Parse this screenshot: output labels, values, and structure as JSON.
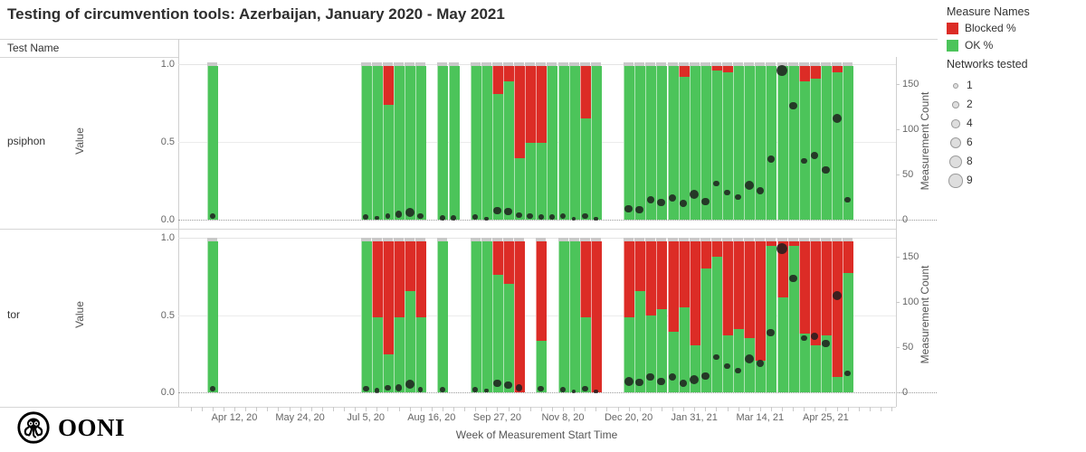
{
  "title": "Testing of circumvention tools: Azerbaijan, January 2020 - May 2021",
  "row_header": "Test Name",
  "x_axis": {
    "title": "Week of Measurement Start Time",
    "ticks": [
      "Apr 12, 20",
      "May 24, 20",
      "Jul 5, 20",
      "Aug 16, 20",
      "Sep 27, 20",
      "Nov 8, 20",
      "Dec 20, 20",
      "Jan 31, 21",
      "Mar 14, 21",
      "Apr 25, 21"
    ]
  },
  "y_left": {
    "label": "Value",
    "ticks": [
      "1.0",
      "0.5",
      "0.0"
    ]
  },
  "y_right": {
    "label": "Measurement Count",
    "ticks": [
      "150",
      "100",
      "50",
      "0"
    ]
  },
  "legend": {
    "measure_title": "Measure Names",
    "measures": [
      {
        "label": "Blocked %",
        "color": "#dc2c26"
      },
      {
        "label": "OK %",
        "color": "#4cc45a"
      }
    ],
    "networks_title": "Networks tested",
    "networks": [
      1,
      2,
      4,
      6,
      8,
      9
    ]
  },
  "logo_text": "OONI",
  "chart_data": [
    {
      "type": "bar",
      "name": "psiphon",
      "stack_measures": [
        "OK %",
        "Blocked %"
      ],
      "x_unit": "weeks relative to Apr 12 2020 tick",
      "columns": [
        "week",
        "ok_pct",
        "blocked_pct",
        "measurement_count",
        "networks_tested"
      ],
      "weeks": [
        [
          -2,
          1,
          0,
          4,
          2
        ],
        [
          12,
          1,
          0,
          3,
          2
        ],
        [
          13,
          1,
          0,
          2,
          1
        ],
        [
          14,
          0.75,
          0.25,
          4,
          2
        ],
        [
          15,
          1,
          0,
          6,
          4
        ],
        [
          16,
          1,
          0,
          8,
          6
        ],
        [
          17,
          1,
          0,
          4,
          3
        ],
        [
          19,
          1,
          0,
          2,
          2
        ],
        [
          20,
          1,
          0,
          2,
          2
        ],
        [
          22,
          1,
          0,
          3,
          2
        ],
        [
          23,
          1,
          0,
          1,
          1
        ],
        [
          24,
          0.82,
          0.18,
          10,
          5
        ],
        [
          25,
          0.9,
          0.1,
          9,
          5
        ],
        [
          26,
          0.4,
          0.6,
          5,
          3
        ],
        [
          27,
          0.5,
          0.5,
          4,
          3
        ],
        [
          28,
          0.5,
          0.5,
          3,
          2
        ],
        [
          29,
          1,
          0,
          3,
          2
        ],
        [
          30,
          1,
          0,
          4,
          3
        ],
        [
          31,
          1,
          0,
          1,
          1
        ],
        [
          32,
          0.66,
          0.34,
          4,
          3
        ],
        [
          33,
          1,
          0,
          1,
          1
        ],
        [
          36,
          1,
          0,
          12,
          5
        ],
        [
          37,
          1,
          0,
          11,
          5
        ],
        [
          38,
          1,
          0,
          22,
          4
        ],
        [
          39,
          1,
          0,
          19,
          5
        ],
        [
          40,
          1,
          0,
          24,
          5
        ],
        [
          41,
          0.93,
          0.07,
          18,
          4
        ],
        [
          42,
          1,
          0,
          28,
          6
        ],
        [
          43,
          1,
          0,
          20,
          5
        ],
        [
          44,
          0.97,
          0.03,
          40,
          3
        ],
        [
          45,
          0.96,
          0.04,
          30,
          3
        ],
        [
          46,
          1,
          0,
          25,
          3
        ],
        [
          47,
          1,
          0,
          38,
          6
        ],
        [
          48,
          1,
          0,
          32,
          4
        ],
        [
          49,
          1,
          0,
          67,
          4
        ],
        [
          50,
          1,
          0,
          165,
          8
        ],
        [
          51,
          1,
          0,
          126,
          5
        ],
        [
          52,
          0.9,
          0.1,
          65,
          3
        ],
        [
          53,
          0.92,
          0.08,
          71,
          4
        ],
        [
          54,
          1,
          0,
          55,
          5
        ],
        [
          55,
          0.96,
          0.04,
          112,
          6
        ],
        [
          56,
          1,
          0,
          22,
          3
        ]
      ]
    },
    {
      "type": "bar",
      "name": "tor",
      "stack_measures": [
        "OK %",
        "Blocked %"
      ],
      "x_unit": "weeks relative to Apr 12 2020 tick",
      "columns": [
        "week",
        "ok_pct",
        "blocked_pct",
        "measurement_count",
        "networks_tested"
      ],
      "weeks": [
        [
          -2,
          1,
          0,
          4,
          2
        ],
        [
          12,
          1,
          0,
          4,
          3
        ],
        [
          13,
          0.5,
          0.5,
          2,
          2
        ],
        [
          14,
          0.25,
          0.75,
          5,
          3
        ],
        [
          15,
          0.5,
          0.5,
          5,
          4
        ],
        [
          16,
          0.67,
          0.33,
          9,
          6
        ],
        [
          17,
          0.5,
          0.5,
          3,
          2
        ],
        [
          19,
          1,
          0,
          3,
          2
        ],
        [
          22,
          1,
          0,
          3,
          2
        ],
        [
          23,
          1,
          0,
          2,
          1
        ],
        [
          24,
          0.78,
          0.22,
          10,
          5
        ],
        [
          25,
          0.72,
          0.28,
          8,
          5
        ],
        [
          26,
          0,
          1,
          5,
          4
        ],
        [
          28,
          0.34,
          0.66,
          4,
          3
        ],
        [
          30,
          1,
          0,
          3,
          2
        ],
        [
          31,
          1,
          0,
          1,
          1
        ],
        [
          32,
          0.5,
          0.5,
          4,
          3
        ],
        [
          33,
          0,
          1,
          1,
          1
        ],
        [
          36,
          0.5,
          0.5,
          12,
          6
        ],
        [
          37,
          0.67,
          0.33,
          11,
          5
        ],
        [
          38,
          0.51,
          0.49,
          17,
          5
        ],
        [
          39,
          0.55,
          0.45,
          12,
          5
        ],
        [
          40,
          0.4,
          0.6,
          17,
          5
        ],
        [
          41,
          0.56,
          0.44,
          10,
          4
        ],
        [
          42,
          0.31,
          0.69,
          14,
          6
        ],
        [
          43,
          0.82,
          0.18,
          18,
          5
        ],
        [
          44,
          0.9,
          0.1,
          39,
          3
        ],
        [
          45,
          0.38,
          0.62,
          29,
          3
        ],
        [
          46,
          0.42,
          0.58,
          24,
          3
        ],
        [
          47,
          0.36,
          0.64,
          37,
          6
        ],
        [
          48,
          0.21,
          0.79,
          32,
          4
        ],
        [
          49,
          0.97,
          0.03,
          66,
          5
        ],
        [
          50,
          0.63,
          0.37,
          159,
          8
        ],
        [
          51,
          0.97,
          0.03,
          126,
          5
        ],
        [
          52,
          0.39,
          0.61,
          60,
          3
        ],
        [
          53,
          0.31,
          0.69,
          62,
          4
        ],
        [
          54,
          0.38,
          0.62,
          54,
          5
        ],
        [
          55,
          0.1,
          0.9,
          107,
          6
        ],
        [
          56,
          0.79,
          0.21,
          21,
          3
        ]
      ]
    }
  ]
}
